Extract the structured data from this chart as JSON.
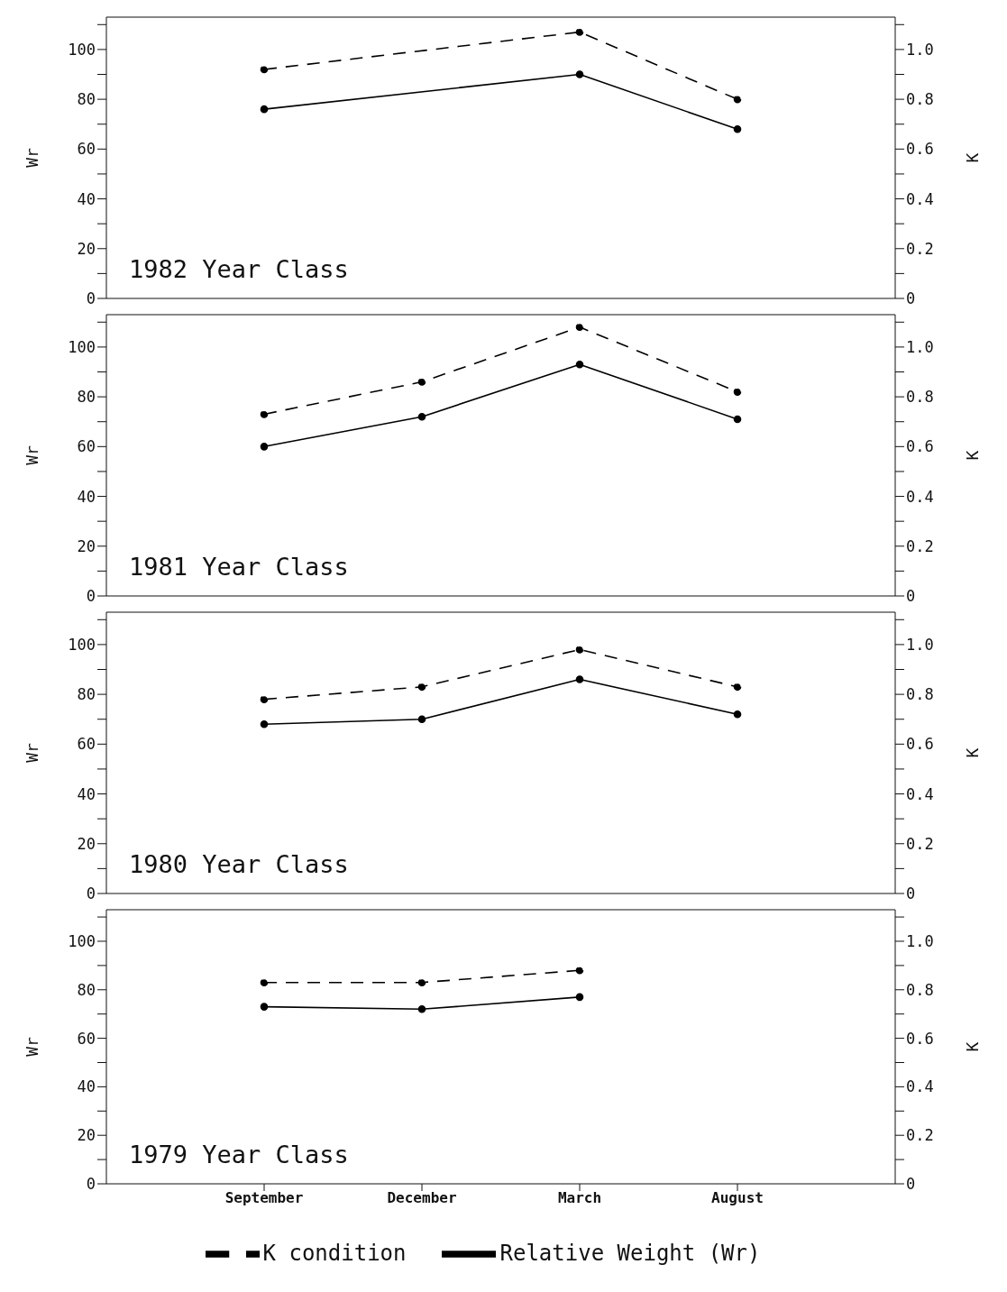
{
  "chart_data": [
    {
      "type": "line",
      "categories": [
        null,
        null,
        null,
        null,
        null,
        null
      ],
      "ylabel": "Wr",
      "y2label": "K",
      "ylim": [
        0,
        113
      ],
      "y2lim": [
        0,
        1.13
      ],
      "yticks": [
        0,
        {
          "value": 10,
          "label": null
        },
        20,
        {
          "value": 30,
          "label": null
        },
        40,
        {
          "value": 50,
          "label": null
        },
        60,
        {
          "value": 70,
          "label": null
        },
        80,
        {
          "value": 90,
          "label": null
        },
        100,
        {
          "value": 110,
          "label": null
        }
      ],
      "y2ticks": [
        0,
        {
          "value": 0.1,
          "label": null
        },
        0.2,
        {
          "value": 0.3,
          "label": null
        },
        0.4,
        {
          "value": 0.5,
          "label": null
        },
        0.6,
        {
          "value": 0.7,
          "label": null
        },
        0.8,
        {
          "value": 0.9,
          "label": null
        },
        {
          "value": 1,
          "label": "1.0"
        },
        {
          "value": 1.1,
          "label": null
        }
      ],
      "tick_labels": "y",
      "marker": "circle",
      "annotations": [
        "1982 Year Class"
      ],
      "series": [
        {
          "color": "#000000",
          "line_style": "dashed",
          "axis": "y2",
          "values": [
            null,
            0.92,
            null,
            1.07,
            0.8,
            null
          ]
        },
        {
          "color": "#000000",
          "line_style": "solid",
          "values": [
            null,
            76,
            null,
            90,
            68,
            null
          ]
        }
      ]
    },
    {
      "type": "line",
      "categories": [
        null,
        null,
        null,
        null,
        null,
        null
      ],
      "ylabel": "Wr",
      "y2label": "K",
      "ylim": [
        0,
        113
      ],
      "y2lim": [
        0,
        1.13
      ],
      "yticks": [
        0,
        {
          "value": 10,
          "label": null
        },
        20,
        {
          "value": 30,
          "label": null
        },
        40,
        {
          "value": 50,
          "label": null
        },
        60,
        {
          "value": 70,
          "label": null
        },
        80,
        {
          "value": 90,
          "label": null
        },
        100,
        {
          "value": 110,
          "label": null
        }
      ],
      "y2ticks": [
        0,
        {
          "value": 0.1,
          "label": null
        },
        0.2,
        {
          "value": 0.3,
          "label": null
        },
        0.4,
        {
          "value": 0.5,
          "label": null
        },
        0.6,
        {
          "value": 0.7,
          "label": null
        },
        0.8,
        {
          "value": 0.9,
          "label": null
        },
        {
          "value": 1,
          "label": "1.0"
        },
        {
          "value": 1.1,
          "label": null
        }
      ],
      "tick_labels": "y",
      "marker": "circle",
      "annotations": [
        "1981 Year Class"
      ],
      "series": [
        {
          "color": "#000000",
          "line_style": "dashed",
          "axis": "y2",
          "values": [
            null,
            0.73,
            0.86,
            1.08,
            0.82,
            null
          ]
        },
        {
          "color": "#000000",
          "line_style": "solid",
          "values": [
            null,
            60,
            72,
            93,
            71,
            null
          ]
        }
      ]
    },
    {
      "type": "line",
      "categories": [
        null,
        null,
        null,
        null,
        null,
        null
      ],
      "ylabel": "Wr",
      "y2label": "K",
      "ylim": [
        0,
        113
      ],
      "y2lim": [
        0,
        1.13
      ],
      "yticks": [
        0,
        {
          "value": 10,
          "label": null
        },
        20,
        {
          "value": 30,
          "label": null
        },
        40,
        {
          "value": 50,
          "label": null
        },
        60,
        {
          "value": 70,
          "label": null
        },
        80,
        {
          "value": 90,
          "label": null
        },
        100,
        {
          "value": 110,
          "label": null
        }
      ],
      "y2ticks": [
        0,
        {
          "value": 0.1,
          "label": null
        },
        0.2,
        {
          "value": 0.3,
          "label": null
        },
        0.4,
        {
          "value": 0.5,
          "label": null
        },
        0.6,
        {
          "value": 0.7,
          "label": null
        },
        0.8,
        {
          "value": 0.9,
          "label": null
        },
        {
          "value": 1,
          "label": "1.0"
        },
        {
          "value": 1.1,
          "label": null
        }
      ],
      "tick_labels": "y",
      "marker": "circle",
      "annotations": [
        "1980 Year Class"
      ],
      "series": [
        {
          "color": "#000000",
          "line_style": "dashed",
          "axis": "y2",
          "values": [
            null,
            0.78,
            0.83,
            0.98,
            0.83,
            null
          ]
        },
        {
          "color": "#000000",
          "line_style": "solid",
          "values": [
            null,
            68,
            70,
            86,
            72,
            null
          ]
        }
      ]
    },
    {
      "type": "line",
      "categories": [
        null,
        "September",
        "December",
        "March",
        "August",
        null
      ],
      "ylabel": "Wr",
      "y2label": "K",
      "ylim": [
        0,
        113
      ],
      "y2lim": [
        0,
        1.13
      ],
      "yticks": [
        0,
        {
          "value": 10,
          "label": null
        },
        20,
        {
          "value": 30,
          "label": null
        },
        40,
        {
          "value": 50,
          "label": null
        },
        60,
        {
          "value": 70,
          "label": null
        },
        80,
        {
          "value": 90,
          "label": null
        },
        100,
        {
          "value": 110,
          "label": null
        }
      ],
      "y2ticks": [
        0,
        {
          "value": 0.1,
          "label": null
        },
        0.2,
        {
          "value": 0.3,
          "label": null
        },
        0.4,
        {
          "value": 0.5,
          "label": null
        },
        0.6,
        {
          "value": 0.7,
          "label": null
        },
        0.8,
        {
          "value": 0.9,
          "label": null
        },
        {
          "value": 1,
          "label": "1.0"
        },
        {
          "value": 1.1,
          "label": null
        }
      ],
      "marker": "circle",
      "legend": "bottom",
      "annotations": [
        "1979 Year Class"
      ],
      "series": [
        {
          "name": "K condition",
          "color": "#000000",
          "line_style": "dashed",
          "axis": "y2",
          "values": [
            null,
            0.83,
            0.83,
            0.88,
            null,
            null
          ]
        },
        {
          "name": "Relative Weight (Wr)",
          "color": "#000000",
          "line_style": "solid",
          "values": [
            null,
            73,
            72,
            77,
            null,
            null
          ]
        }
      ]
    }
  ]
}
